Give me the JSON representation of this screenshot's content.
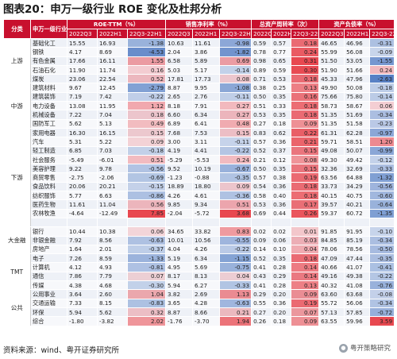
{
  "title": "图表20：申万一级行业 ROE 变化及杜邦分析",
  "header": {
    "group_col": "分类",
    "industry_col": "申万一级行业",
    "groups": [
      "ROE-TTM（%）",
      "销售净利率（%）",
      "总资产周转率（次）",
      "资产负债率（%）"
    ],
    "subs": [
      "2022Q3",
      "2022H1",
      "22Q3-22H1"
    ]
  },
  "colors": {
    "header": "#c8102e",
    "positive": "#e8686e",
    "negative": "#4f7fc6"
  },
  "rows": [
    {
      "group": "上游",
      "span": 5,
      "name": "基础化工",
      "v": [
        "15.55",
        "16.93",
        "-1.38",
        "10.63",
        "11.61",
        "-0.98",
        "0.59",
        "0.57",
        "0.18",
        "46.65",
        "46.96",
        "-0.31"
      ]
    },
    {
      "group": "",
      "span": 0,
      "name": "钢铁",
      "v": [
        "4.17",
        "8.69",
        "-4.53",
        "2.04",
        "3.86",
        "-1.82",
        "0.78",
        "0.77",
        "0.24",
        "55.99",
        "56.08",
        "-0.09"
      ]
    },
    {
      "group": "",
      "span": 0,
      "name": "有色金属",
      "v": [
        "17.66",
        "16.11",
        "1.55",
        "6.58",
        "5.89",
        "0.69",
        "0.98",
        "0.65",
        "0.31",
        "51.50",
        "53.05",
        "-1.55"
      ]
    },
    {
      "group": "",
      "span": 0,
      "name": "石油石化",
      "v": [
        "11.90",
        "11.74",
        "0.16",
        "5.03",
        "5.17",
        "-0.14",
        "0.89",
        "0.59",
        "0.30",
        "51.90",
        "51.66",
        "0.24"
      ]
    },
    {
      "group": "",
      "span": 0,
      "name": "煤炭",
      "v": [
        "23.06",
        "22.54",
        "0.52",
        "17.81",
        "17.73",
        "0.08",
        "0.71",
        "0.53",
        "0.18",
        "45.33",
        "47.96",
        "-2.63"
      ]
    },
    {
      "group": "中游",
      "span": 5,
      "name": "建筑材料",
      "v": [
        "9.67",
        "12.45",
        "-2.79",
        "8.87",
        "9.95",
        "-1.08",
        "0.38",
        "0.25",
        "0.13",
        "49.90",
        "50.08",
        "-0.18"
      ]
    },
    {
      "group": "",
      "span": 0,
      "name": "建筑装饰",
      "v": [
        "7.19",
        "7.42",
        "-0.22",
        "2.65",
        "2.76",
        "-0.11",
        "0.50",
        "0.35",
        "0.16",
        "75.66",
        "75.80",
        "-0.14"
      ]
    },
    {
      "group": "",
      "span": 0,
      "name": "电力设备",
      "v": [
        "13.08",
        "11.95",
        "1.12",
        "8.18",
        "7.91",
        "0.27",
        "0.51",
        "0.33",
        "0.18",
        "58.73",
        "58.67",
        "0.06"
      ]
    },
    {
      "group": "",
      "span": 0,
      "name": "机械设备",
      "v": [
        "7.22",
        "7.04",
        "0.18",
        "6.60",
        "6.34",
        "0.27",
        "0.53",
        "0.35",
        "0.18",
        "51.35",
        "51.69",
        "-0.34"
      ]
    },
    {
      "group": "",
      "span": 0,
      "name": "国防军工",
      "v": [
        "5.62",
        "5.13",
        "0.49",
        "6.89",
        "6.41",
        "0.48",
        "0.27",
        "0.18",
        "0.09",
        "51.35",
        "51.58",
        "-0.23"
      ]
    },
    {
      "group": "下游",
      "span": 11,
      "name": "家用电器",
      "v": [
        "16.30",
        "16.15",
        "0.15",
        "7.68",
        "7.53",
        "0.15",
        "0.83",
        "0.62",
        "0.22",
        "61.31",
        "62.28",
        "-0.97"
      ]
    },
    {
      "group": "",
      "span": 0,
      "name": "汽车",
      "v": [
        "5.31",
        "5.22",
        "0.09",
        "3.00",
        "3.11",
        "-0.11",
        "0.57",
        "0.36",
        "0.21",
        "59.71",
        "58.51",
        "1.20"
      ]
    },
    {
      "group": "",
      "span": 0,
      "name": "轻工制造",
      "v": [
        "6.85",
        "7.03",
        "-0.18",
        "4.19",
        "4.41",
        "-0.22",
        "0.52",
        "0.37",
        "0.15",
        "49.08",
        "50.07",
        "-0.99"
      ]
    },
    {
      "group": "",
      "span": 0,
      "name": "社会服务",
      "v": [
        "-5.49",
        "-6.01",
        "0.51",
        "-5.29",
        "-5.53",
        "0.24",
        "0.21",
        "0.12",
        "0.08",
        "49.30",
        "49.42",
        "-0.12"
      ]
    },
    {
      "group": "",
      "span": 0,
      "name": "美容护理",
      "v": [
        "9.22",
        "9.78",
        "-0.56",
        "9.52",
        "10.19",
        "-0.67",
        "0.50",
        "0.35",
        "0.15",
        "32.36",
        "32.69",
        "-0.33"
      ]
    },
    {
      "group": "",
      "span": 0,
      "name": "商贸零售",
      "v": [
        "-2.75",
        "-2.06",
        "-0.69",
        "-1.23",
        "-0.88",
        "-0.35",
        "0.57",
        "0.38",
        "0.19",
        "63.56",
        "64.88",
        "-1.32"
      ]
    },
    {
      "group": "",
      "span": 0,
      "name": "食品饮料",
      "v": [
        "20.06",
        "20.21",
        "-0.15",
        "18.89",
        "18.80",
        "0.09",
        "0.54",
        "0.36",
        "0.18",
        "33.73",
        "34.29",
        "-0.56"
      ]
    },
    {
      "group": "",
      "span": 0,
      "name": "纺织服饰",
      "v": [
        "5.77",
        "6.63",
        "-0.86",
        "4.26",
        "4.61",
        "-0.36",
        "0.58",
        "0.40",
        "0.18",
        "40.15",
        "40.75",
        "-0.60"
      ]
    },
    {
      "group": "",
      "span": 0,
      "name": "医药生物",
      "v": [
        "11.61",
        "11.04",
        "0.56",
        "9.85",
        "9.34",
        "0.51",
        "0.53",
        "0.36",
        "0.17",
        "39.57",
        "40.21",
        "-0.64"
      ]
    },
    {
      "group": "",
      "span": 0,
      "name": "农林牧渔",
      "v": [
        "-4.64",
        "-12.49",
        "7.85",
        "-2.04",
        "-5.72",
        "3.68",
        "0.69",
        "0.44",
        "0.26",
        "59.37",
        "60.72",
        "-1.35"
      ]
    },
    {
      "group": "",
      "span": 0,
      "name": "",
      "v": [
        "",
        "",
        "",
        "",
        "",
        "",
        "",
        "",
        "",
        "",
        "",
        ""
      ]
    },
    {
      "group": "大金融",
      "span": 3,
      "name": "银行",
      "v": [
        "10.44",
        "10.38",
        "0.06",
        "34.65",
        "33.82",
        "0.83",
        "0.02",
        "0.02",
        "0.01",
        "91.85",
        "91.95",
        "-0.10"
      ]
    },
    {
      "group": "",
      "span": 0,
      "name": "非银金融",
      "v": [
        "7.92",
        "8.56",
        "-0.63",
        "10.01",
        "10.56",
        "-0.55",
        "0.09",
        "0.06",
        "0.03",
        "84.85",
        "85.19",
        "-0.34"
      ]
    },
    {
      "group": "",
      "span": 0,
      "name": "房地产",
      "v": [
        "1.64",
        "2.01",
        "-0.37",
        "4.04",
        "4.26",
        "-0.22",
        "0.14",
        "0.10",
        "0.04",
        "78.06",
        "78.56",
        "-0.50"
      ]
    },
    {
      "group": "TMT",
      "span": 4,
      "name": "电子",
      "v": [
        "7.26",
        "8.59",
        "-1.33",
        "5.19",
        "6.34",
        "-1.15",
        "0.52",
        "0.35",
        "0.18",
        "47.09",
        "47.44",
        "-0.35"
      ]
    },
    {
      "group": "",
      "span": 0,
      "name": "计算机",
      "v": [
        "4.12",
        "4.93",
        "-0.81",
        "4.95",
        "5.69",
        "-0.75",
        "0.41",
        "0.28",
        "0.14",
        "40.66",
        "41.07",
        "-0.41"
      ]
    },
    {
      "group": "",
      "span": 0,
      "name": "通信",
      "v": [
        "7.86",
        "7.79",
        "0.07",
        "8.17",
        "8.13",
        "0.04",
        "0.43",
        "0.29",
        "0.14",
        "49.16",
        "49.38",
        "-0.22"
      ]
    },
    {
      "group": "",
      "span": 0,
      "name": "传媒",
      "v": [
        "4.38",
        "4.68",
        "-0.30",
        "5.94",
        "6.27",
        "-0.33",
        "0.41",
        "0.28",
        "0.13",
        "40.32",
        "41.08",
        "-0.76"
      ]
    },
    {
      "group": "公共",
      "span": 4,
      "name": "公用事业",
      "v": [
        "3.64",
        "2.60",
        "1.04",
        "3.82",
        "2.69",
        "1.13",
        "0.29",
        "0.20",
        "0.09",
        "63.60",
        "63.68",
        "-0.08"
      ]
    },
    {
      "group": "",
      "span": 0,
      "name": "交通运输",
      "v": [
        "7.33",
        "8.15",
        "-0.83",
        "3.65",
        "4.28",
        "-0.63",
        "0.55",
        "0.36",
        "0.19",
        "55.72",
        "56.06",
        "-0.34"
      ]
    },
    {
      "group": "",
      "span": 0,
      "name": "环保",
      "v": [
        "5.94",
        "5.62",
        "0.32",
        "8.87",
        "8.66",
        "0.21",
        "0.27",
        "0.20",
        "0.07",
        "57.13",
        "57.85",
        "-0.72"
      ]
    },
    {
      "group": "",
      "span": 0,
      "name": "综合",
      "v": [
        "-1.80",
        "-3.82",
        "2.02",
        "-1.76",
        "-3.70",
        "1.94",
        "0.26",
        "0.18",
        "0.09",
        "63.55",
        "59.96",
        "3.59"
      ]
    }
  ],
  "source": "资料来源：wind、粤开证券研究所",
  "logo_text": "粤开策略研究"
}
